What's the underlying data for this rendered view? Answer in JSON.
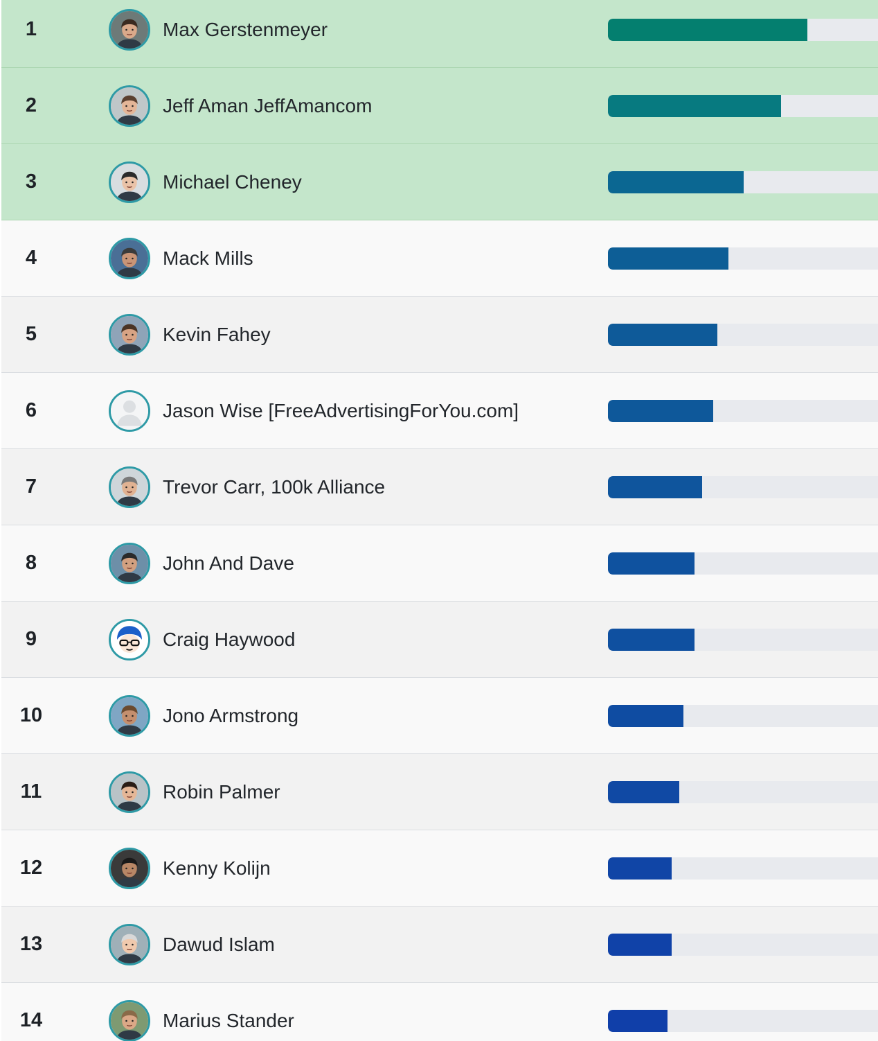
{
  "leaderboard": {
    "entries": [
      {
        "rank": "1",
        "name": "Max Gerstenmeyer",
        "score_fraction": 0.735,
        "bar_color": "#047f6f",
        "row_bg": "#c4e6cb",
        "top": true,
        "avatar_icon": "user-photo-icon"
      },
      {
        "rank": "2",
        "name": "Jeff Aman JeffAmancom",
        "score_fraction": 0.637,
        "bar_color": "#077a80",
        "row_bg": "#c4e6cb",
        "top": true,
        "avatar_icon": "user-photo-icon"
      },
      {
        "rank": "3",
        "name": "Michael Cheney",
        "score_fraction": 0.499,
        "bar_color": "#0b6792",
        "row_bg": "#c4e6cb",
        "top": true,
        "avatar_icon": "user-photo-icon"
      },
      {
        "rank": "4",
        "name": "Mack Mills",
        "score_fraction": 0.443,
        "bar_color": "#0d5e96",
        "row_bg": "#f9f9f9",
        "top": false,
        "avatar_icon": "user-photo-icon"
      },
      {
        "rank": "5",
        "name": "Kevin Fahey",
        "score_fraction": 0.402,
        "bar_color": "#0e5a99",
        "row_bg": "#f2f2f2",
        "top": false,
        "avatar_icon": "user-photo-icon"
      },
      {
        "rank": "6",
        "name": "Jason Wise [FreeAdvertisingForYou.com]",
        "score_fraction": 0.387,
        "bar_color": "#0e589a",
        "row_bg": "#f9f9f9",
        "top": false,
        "avatar_icon": "default-user-icon"
      },
      {
        "rank": "7",
        "name": "Trevor Carr, 100k Alliance",
        "score_fraction": 0.346,
        "bar_color": "#0f559d",
        "row_bg": "#f2f2f2",
        "top": false,
        "avatar_icon": "user-photo-icon"
      },
      {
        "rank": "8",
        "name": "John And Dave",
        "score_fraction": 0.318,
        "bar_color": "#0f529f",
        "row_bg": "#f9f9f9",
        "top": false,
        "avatar_icon": "user-photo-icon"
      },
      {
        "rank": "9",
        "name": "Craig Haywood",
        "score_fraction": 0.318,
        "bar_color": "#0f50a0",
        "row_bg": "#f2f2f2",
        "top": false,
        "avatar_icon": "cartoon-face-icon"
      },
      {
        "rank": "10",
        "name": "Jono Armstrong",
        "score_fraction": 0.277,
        "bar_color": "#0f4ca2",
        "row_bg": "#f9f9f9",
        "top": false,
        "avatar_icon": "user-photo-icon"
      },
      {
        "rank": "11",
        "name": "Robin Palmer",
        "score_fraction": 0.264,
        "bar_color": "#1049a4",
        "row_bg": "#f2f2f2",
        "top": false,
        "avatar_icon": "user-photo-icon"
      },
      {
        "rank": "12",
        "name": "Kenny Kolijn",
        "score_fraction": 0.235,
        "bar_color": "#1045a6",
        "row_bg": "#f9f9f9",
        "top": false,
        "avatar_icon": "user-photo-icon"
      },
      {
        "rank": "13",
        "name": "Dawud Islam",
        "score_fraction": 0.235,
        "bar_color": "#1042a8",
        "row_bg": "#f2f2f2",
        "top": false,
        "avatar_icon": "user-photo-icon"
      },
      {
        "rank": "14",
        "name": "Marius Stander",
        "score_fraction": 0.22,
        "bar_color": "#103fa9",
        "row_bg": "#f9f9f9",
        "top": false,
        "avatar_icon": "user-photo-icon"
      }
    ]
  }
}
